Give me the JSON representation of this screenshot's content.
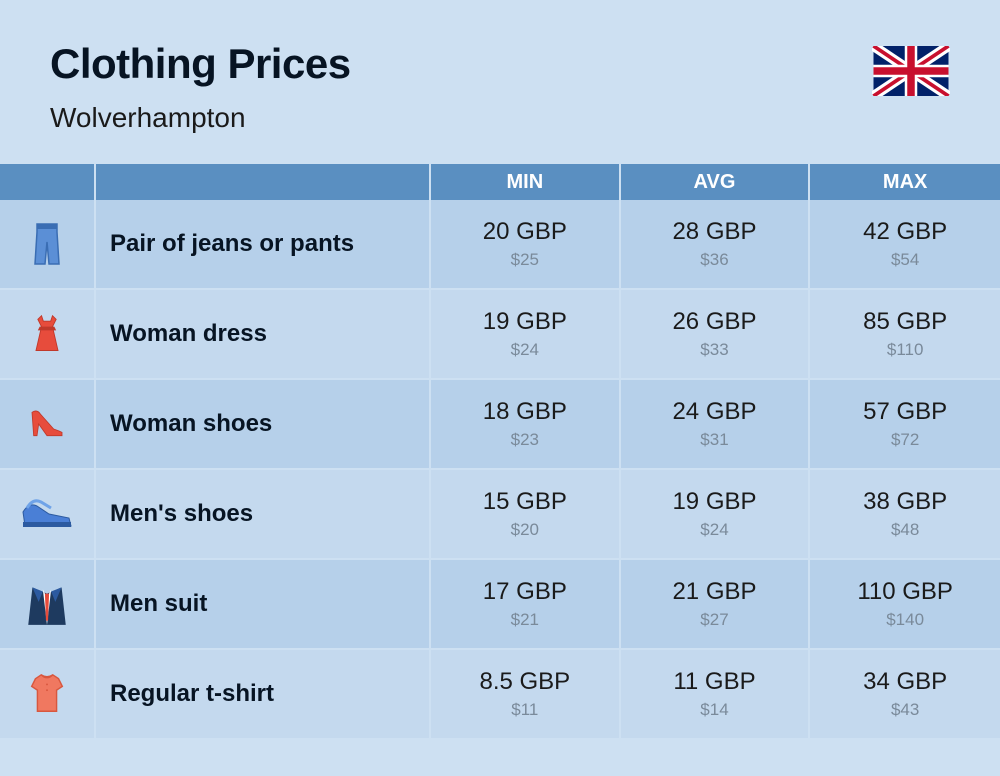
{
  "header": {
    "title": "Clothing Prices",
    "subtitle": "Wolverhampton"
  },
  "columns": {
    "min": "MIN",
    "avg": "AVG",
    "max": "MAX"
  },
  "colors": {
    "page_bg": "#cde0f2",
    "header_bg": "#5a8fc1",
    "header_text": "#ffffff",
    "row_bg": "#c4d9ee",
    "row_alt_bg": "#b6d0ea",
    "text_dark": "#071423",
    "text_sub": "#7a8a9a"
  },
  "rows": [
    {
      "icon": "jeans-icon",
      "name": "Pair of jeans or pants",
      "min_gbp": "20 GBP",
      "min_usd": "$25",
      "avg_gbp": "28 GBP",
      "avg_usd": "$36",
      "max_gbp": "42 GBP",
      "max_usd": "$54"
    },
    {
      "icon": "dress-icon",
      "name": "Woman dress",
      "min_gbp": "19 GBP",
      "min_usd": "$24",
      "avg_gbp": "26 GBP",
      "avg_usd": "$33",
      "max_gbp": "85 GBP",
      "max_usd": "$110"
    },
    {
      "icon": "heel-icon",
      "name": "Woman shoes",
      "min_gbp": "18 GBP",
      "min_usd": "$23",
      "avg_gbp": "24 GBP",
      "avg_usd": "$31",
      "max_gbp": "57 GBP",
      "max_usd": "$72"
    },
    {
      "icon": "sneaker-icon",
      "name": "Men's shoes",
      "min_gbp": "15 GBP",
      "min_usd": "$20",
      "avg_gbp": "19 GBP",
      "avg_usd": "$24",
      "max_gbp": "38 GBP",
      "max_usd": "$48"
    },
    {
      "icon": "suit-icon",
      "name": "Men suit",
      "min_gbp": "17 GBP",
      "min_usd": "$21",
      "avg_gbp": "21 GBP",
      "avg_usd": "$27",
      "max_gbp": "110 GBP",
      "max_usd": "$140"
    },
    {
      "icon": "tshirt-icon",
      "name": "Regular t-shirt",
      "min_gbp": "8.5 GBP",
      "min_usd": "$11",
      "avg_gbp": "11 GBP",
      "avg_usd": "$14",
      "max_gbp": "34 GBP",
      "max_usd": "$43"
    }
  ]
}
